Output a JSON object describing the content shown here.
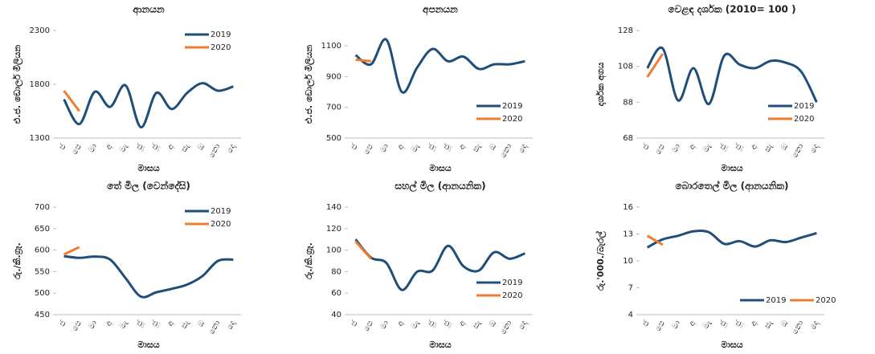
{
  "chart_data": [
    {
      "type": "line",
      "title": "ආනයන",
      "x_label": "මාසය",
      "y_label": "එ.ජ. ඩොලර් මිලියන",
      "categories": [
        "ජ",
        "පෙ",
        "මා",
        "අ",
        "මැ",
        "ජූ",
        "ජූ",
        "අ",
        "සැ",
        "ඔ",
        "නො",
        "දෙ"
      ],
      "ylim": [
        1300,
        2300
      ],
      "yticks": [
        1300,
        1800,
        2300
      ],
      "grid": false,
      "legend": "upper right",
      "series": [
        {
          "name": "2019",
          "color": "#1f4e79",
          "values": [
            1660,
            1430,
            1730,
            1590,
            1790,
            1400,
            1720,
            1570,
            1720,
            1810,
            1740,
            1780
          ]
        },
        {
          "name": "2020",
          "color": "#ed7d31",
          "values": [
            1740,
            1550,
            null,
            null,
            null,
            null,
            null,
            null,
            null,
            null,
            null,
            null
          ]
        }
      ]
    },
    {
      "type": "line",
      "title": "අපනයන",
      "x_label": "මාසය",
      "y_label": "එ.ජ. ඩොලර් මිලියන",
      "categories": [
        "ජ",
        "පෙ",
        "මා",
        "අ",
        "මැ",
        "ජූ",
        "ජූ",
        "අ",
        "සැ",
        "ඔ",
        "නො",
        "දෙ"
      ],
      "ylim": [
        500,
        1200
      ],
      "yticks": [
        500,
        700,
        900,
        1100
      ],
      "grid": false,
      "legend": "lower right",
      "series": [
        {
          "name": "2019",
          "color": "#1f4e79",
          "values": [
            1040,
            980,
            1140,
            800,
            960,
            1080,
            1000,
            1030,
            950,
            980,
            980,
            1000
          ]
        },
        {
          "name": "2020",
          "color": "#ed7d31",
          "values": [
            1010,
            1000,
            null,
            null,
            null,
            null,
            null,
            null,
            null,
            null,
            null,
            null
          ]
        }
      ]
    },
    {
      "type": "line",
      "title": "වෙළඳ දර්ශක (2010= 100 )",
      "x_label": "මාසය",
      "y_label": "දර්ශක අගය",
      "categories": [
        "ජ",
        "පෙ",
        "මා",
        "අ",
        "මැ",
        "ජූ",
        "ජූ",
        "අ",
        "සැ",
        "ඔ",
        "නො",
        "දෙ"
      ],
      "ylim": [
        68,
        128
      ],
      "yticks": [
        68,
        88,
        108,
        128
      ],
      "grid": false,
      "legend": "lower right",
      "series": [
        {
          "name": "2019",
          "color": "#1f4e79",
          "values": [
            107,
            118,
            89,
            107,
            87,
            114,
            109,
            107,
            111,
            110,
            105,
            88
          ]
        },
        {
          "name": "2020",
          "color": "#ed7d31",
          "values": [
            102,
            115,
            null,
            null,
            null,
            null,
            null,
            null,
            null,
            null,
            null,
            null
          ]
        }
      ]
    },
    {
      "type": "line",
      "title": "තේ මිල (වෙන්දේසි)",
      "x_label": "මාසය",
      "y_label": "රු./කි.ග්‍රෑ.",
      "categories": [
        "ජ",
        "පෙ",
        "මා",
        "අ",
        "මැ",
        "ජූ",
        "ජූ",
        "අ",
        "සැ",
        "ඔ",
        "නො",
        "දෙ"
      ],
      "ylim": [
        450,
        700
      ],
      "yticks": [
        450,
        500,
        550,
        600,
        650,
        700
      ],
      "grid": false,
      "legend": "upper right",
      "series": [
        {
          "name": "2019",
          "color": "#1f4e79",
          "values": [
            586,
            582,
            585,
            578,
            535,
            492,
            502,
            510,
            520,
            540,
            575,
            578
          ]
        },
        {
          "name": "2020",
          "color": "#ed7d31",
          "values": [
            590,
            607,
            null,
            null,
            null,
            null,
            null,
            null,
            null,
            null,
            null,
            null
          ]
        }
      ]
    },
    {
      "type": "line",
      "title": "සහල් මිල (ආනයනික)",
      "x_label": "මාසය",
      "y_label": "රු./කි.ග්‍රෑ.",
      "categories": [
        "ජ",
        "පෙ",
        "මා",
        "අ",
        "මැ",
        "ජූ",
        "ජූ",
        "අ",
        "සැ",
        "ඔ",
        "නො",
        "දෙ"
      ],
      "ylim": [
        40,
        140
      ],
      "yticks": [
        40,
        60,
        80,
        100,
        120,
        140
      ],
      "grid": false,
      "legend": "lower right",
      "series": [
        {
          "name": "2019",
          "color": "#1f4e79",
          "values": [
            110,
            93,
            88,
            63,
            80,
            81,
            104,
            85,
            81,
            98,
            92,
            97
          ]
        },
        {
          "name": "2020",
          "color": "#ed7d31",
          "values": [
            108,
            92,
            null,
            null,
            null,
            null,
            null,
            null,
            null,
            null,
            null,
            null
          ]
        }
      ]
    },
    {
      "type": "line",
      "title": "බොරතෙල් මිල (ආනයනික)",
      "x_label": "මාසය",
      "y_label": "රු.'000./බැරල්",
      "categories": [
        "ජ",
        "පෙ",
        "මා",
        "අ",
        "මැ",
        "ජූ",
        "ජූ",
        "අ",
        "සැ",
        "ඔ",
        "නො",
        "දෙ"
      ],
      "ylim": [
        4,
        16
      ],
      "yticks": [
        4,
        7,
        10,
        13,
        16
      ],
      "grid": false,
      "legend": "bottom",
      "series": [
        {
          "name": "2019",
          "color": "#1f4e79",
          "values": [
            11.5,
            12.4,
            12.8,
            13.3,
            13.2,
            11.9,
            12.2,
            11.6,
            12.3,
            12.1,
            12.6,
            13.1
          ]
        },
        {
          "name": "2020",
          "color": "#ed7d31",
          "values": [
            12.8,
            11.8,
            null,
            null,
            null,
            null,
            null,
            null,
            null,
            null,
            null,
            null
          ]
        }
      ]
    }
  ]
}
